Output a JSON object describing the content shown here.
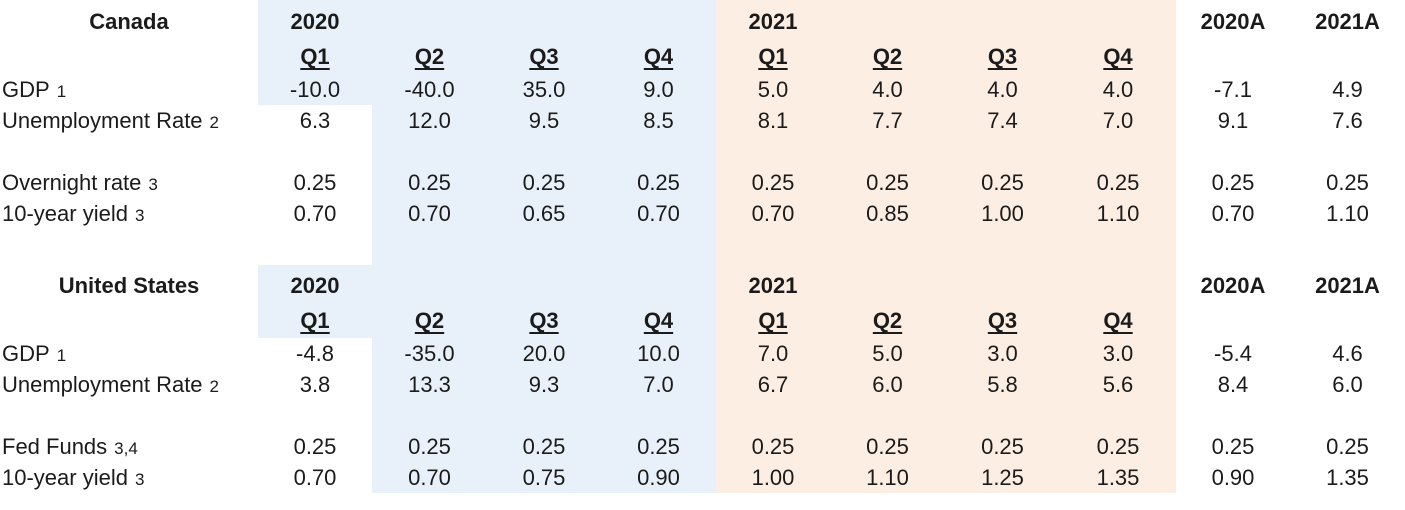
{
  "document": {
    "title": "Economic forecast table"
  },
  "colors": {
    "block_2020": "#e8f1f9",
    "block_2021": "#fdeee3",
    "text": "#1b1b1b",
    "background": "#ffffff"
  },
  "columns": {
    "year_2020": "2020",
    "year_2021": "2021",
    "annual_2020": "2020A",
    "annual_2021": "2021A",
    "quarters": [
      "Q1",
      "Q2",
      "Q3",
      "Q4"
    ]
  },
  "sections": [
    {
      "title": "Canada",
      "rows": [
        {
          "label": "GDP",
          "footnote": "1",
          "values": [
            "-10.0",
            "-40.0",
            "35.0",
            "9.0",
            "5.0",
            "4.0",
            "4.0",
            "4.0",
            "-7.1",
            "4.9"
          ]
        },
        {
          "label": "Unemployment Rate",
          "footnote": "2",
          "values": [
            "6.3",
            "12.0",
            "9.5",
            "8.5",
            "8.1",
            "7.7",
            "7.4",
            "7.0",
            "9.1",
            "7.6"
          ]
        },
        {
          "label": "",
          "footnote": "",
          "values": []
        },
        {
          "label": "Overnight rate",
          "footnote": "3",
          "values": [
            "0.25",
            "0.25",
            "0.25",
            "0.25",
            "0.25",
            "0.25",
            "0.25",
            "0.25",
            "0.25",
            "0.25"
          ]
        },
        {
          "label": "10-year yield",
          "footnote": "3",
          "values": [
            "0.70",
            "0.70",
            "0.65",
            "0.70",
            "0.70",
            "0.85",
            "1.00",
            "1.10",
            "0.70",
            "1.10"
          ]
        }
      ]
    },
    {
      "title": "United States",
      "rows": [
        {
          "label": "GDP",
          "footnote": "1",
          "values": [
            "-4.8",
            "-35.0",
            "20.0",
            "10.0",
            "7.0",
            "5.0",
            "3.0",
            "3.0",
            "-5.4",
            "4.6"
          ]
        },
        {
          "label": "Unemployment Rate",
          "footnote": "2",
          "values": [
            "3.8",
            "13.3",
            "9.3",
            "7.0",
            "6.7",
            "6.0",
            "5.8",
            "5.6",
            "8.4",
            "6.0"
          ]
        },
        {
          "label": "",
          "footnote": "",
          "values": []
        },
        {
          "label": "Fed Funds",
          "footnote": "3,4",
          "values": [
            "0.25",
            "0.25",
            "0.25",
            "0.25",
            "0.25",
            "0.25",
            "0.25",
            "0.25",
            "0.25",
            "0.25"
          ]
        },
        {
          "label": "10-year yield",
          "footnote": "3",
          "values": [
            "0.70",
            "0.70",
            "0.75",
            "0.90",
            "1.00",
            "1.10",
            "1.25",
            "1.35",
            "0.90",
            "1.35"
          ]
        }
      ]
    }
  ]
}
